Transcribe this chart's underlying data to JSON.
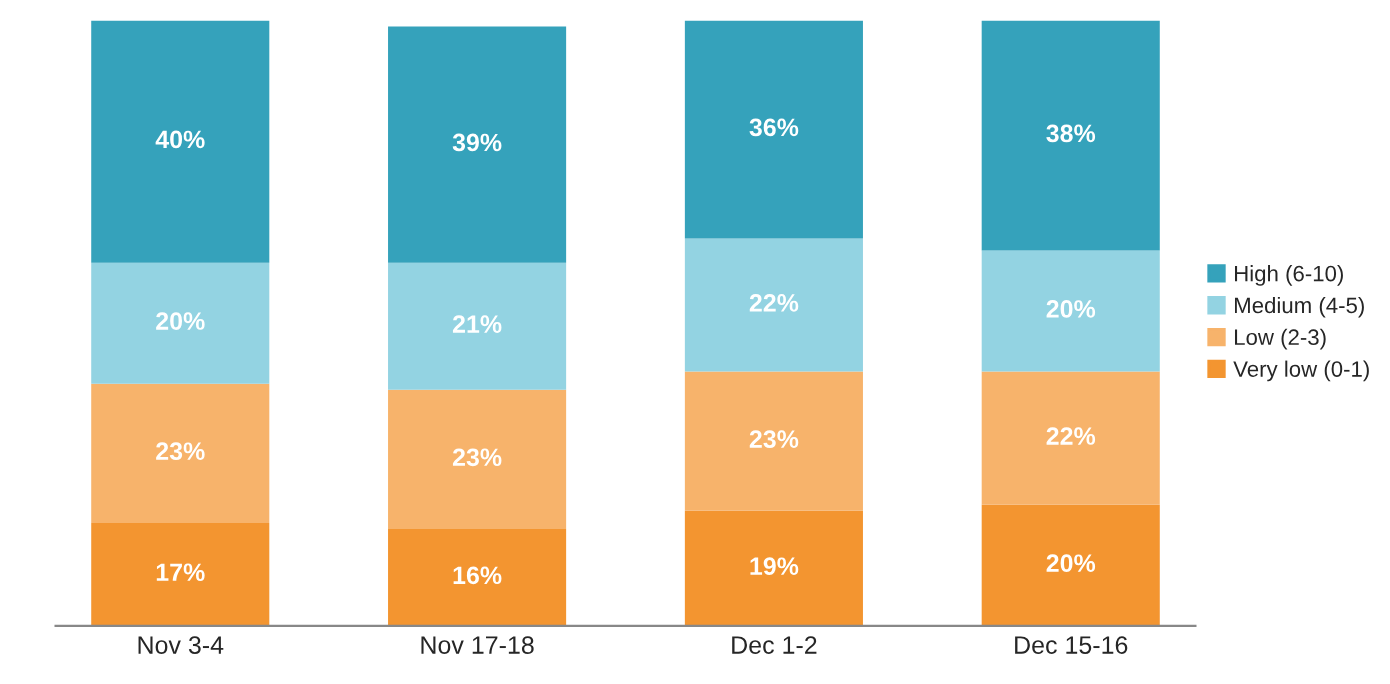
{
  "chart_data": {
    "type": "bar",
    "stacked": true,
    "categories": [
      "Nov 3-4",
      "Nov 17-18",
      "Dec 1-2",
      "Dec 15-16"
    ],
    "series": [
      {
        "name": "Very low (0-1)",
        "color": "#f39530",
        "values": [
          17,
          16,
          19,
          20
        ],
        "value_labels": [
          "17%",
          "16%",
          "19%",
          "20%"
        ]
      },
      {
        "name": "Low (2-3)",
        "color": "#f7b36b",
        "values": [
          23,
          23,
          23,
          22
        ],
        "value_labels": [
          "23%",
          "23%",
          "23%",
          "22%"
        ]
      },
      {
        "name": "Medium (4-5)",
        "color": "#93d3e2",
        "values": [
          20,
          21,
          22,
          20
        ],
        "value_labels": [
          "20%",
          "21%",
          "22%",
          "20%"
        ]
      },
      {
        "name": "High (6-10)",
        "color": "#35a2bb",
        "values": [
          40,
          39,
          36,
          38
        ],
        "value_labels": [
          "40%",
          "39%",
          "36%",
          "38%"
        ]
      }
    ],
    "legend": "right"
  }
}
